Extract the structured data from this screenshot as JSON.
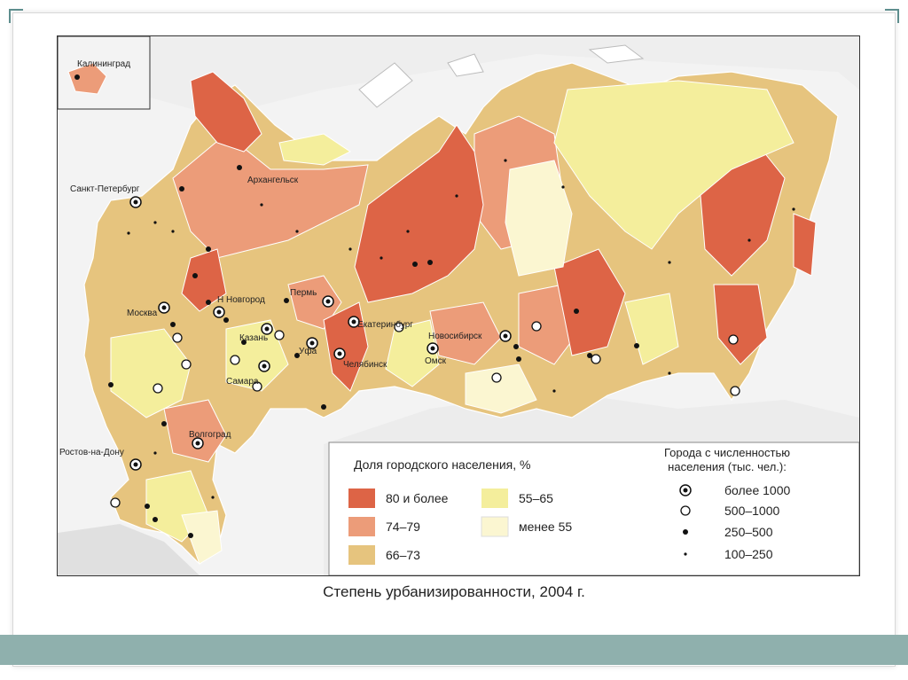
{
  "map": {
    "caption": "Степень урбанизированности, 2004 г.",
    "inset_label": "Калининград",
    "legend": {
      "share_title": "Доля городского населения, %",
      "share_items": [
        {
          "label": "80 и более",
          "color": "#dd6446"
        },
        {
          "label": "74–79",
          "color": "#ec9c79"
        },
        {
          "label": "66–73",
          "color": "#e6c47e"
        },
        {
          "label": "55–65",
          "color": "#f4ee9c"
        },
        {
          "label": "менее 55",
          "color": "#fbf6d1"
        }
      ],
      "cities_title_line1": "Города с численностью",
      "cities_title_line2": "населения (тыс. чел.):",
      "city_items": [
        {
          "label": "более 1000",
          "symbol": "ringed-dot-icon"
        },
        {
          "label": "500–1000",
          "symbol": "open-circle-icon"
        },
        {
          "label": "250–500",
          "symbol": "filled-dot-icon"
        },
        {
          "label": "100–250",
          "symbol": "small-dot-icon"
        }
      ]
    },
    "cities": [
      {
        "name": "Санкт-Петербург"
      },
      {
        "name": "Архангельск"
      },
      {
        "name": "Москва"
      },
      {
        "name": "Н Новгород"
      },
      {
        "name": "Пермь"
      },
      {
        "name": "Казань"
      },
      {
        "name": "Екатеринбург"
      },
      {
        "name": "Уфа"
      },
      {
        "name": "Самара"
      },
      {
        "name": "Челябинск"
      },
      {
        "name": "Новосибирск"
      },
      {
        "name": "Омск"
      },
      {
        "name": "Волгоград"
      },
      {
        "name": "Ростов-на-Дону"
      }
    ]
  }
}
